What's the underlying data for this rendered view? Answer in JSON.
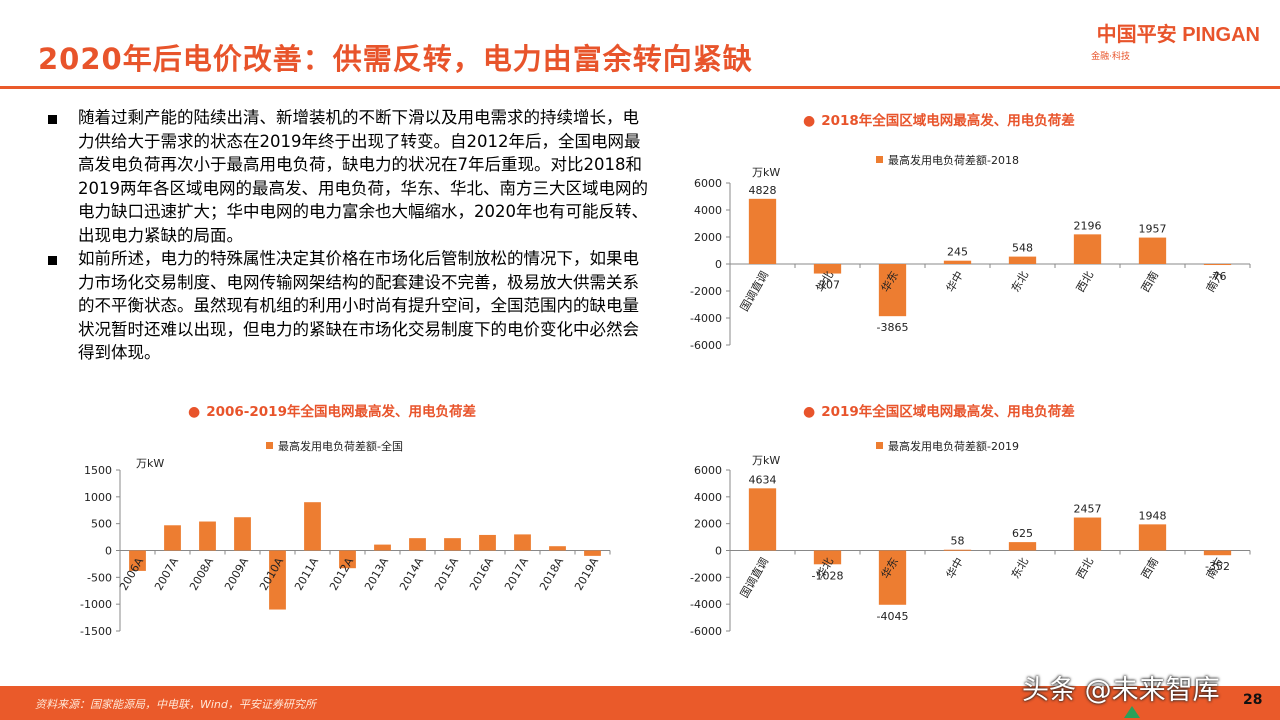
{
  "header": {
    "title": "2020年后电价改善：供需反转，电力由富余转向紧缺",
    "logo_main": "中国平安 PINGAN",
    "logo_sub": "金融·科技"
  },
  "body": {
    "bullets": [
      "随着过剩产能的陆续出清、新增装机的不断下滑以及用电需求的持续增长，电力供给大于需求的状态在2019年终于出现了转变。自2012年后，全国电网最高发电负荷再次小于最高用电负荷，缺电力的状况在7年后重现。对比2018和2019两年各区域电网的最高发、用电负荷，华东、华北、南方三大区域电网的电力缺口迅速扩大；华中电网的电力富余也大幅缩水，2020年也有可能反转、出现电力紧缺的局面。",
      "如前所述，电力的特殊属性决定其价格在市场化后管制放松的情况下，如果电力市场化交易制度、电网传输网架结构的配套建设不完善，极易放大供需关系的不平衡状态。虽然现有机组的利用小时尚有提升空间，全国范围内的缺电量状况暂时还难以出现，但电力的紧缺在市场化交易制度下的电价变化中必然会得到体现。"
    ]
  },
  "footer": {
    "source": "资料来源：国家能源局，中电联，Wind，平安证券研究所",
    "watermark": "头条 @未来智库",
    "page": "28"
  },
  "colors": {
    "accent": "#e8542b",
    "bar": "#ed7d31",
    "footer": "#ea5a2a"
  },
  "chart_data": [
    {
      "id": "2018",
      "type": "bar",
      "title": "2018年全国区域电网最高发、用电负荷差",
      "legend": "最高发用电负荷差额-2018",
      "unit": "万kW",
      "categories": [
        "国调直调",
        "华北",
        "华东",
        "华中",
        "东北",
        "西北",
        "西南",
        "南方"
      ],
      "values": [
        4828,
        -707,
        -3865,
        245,
        548,
        2196,
        1957,
        -76
      ],
      "value_labels": [
        "4828",
        "-707",
        "-3865",
        "245",
        "548",
        "2196",
        "1957",
        "-76"
      ],
      "ylim": [
        -6000,
        6000
      ],
      "yticks": [
        "6000",
        "4000",
        "2000",
        "0",
        "-2000",
        "-4000",
        "-6000"
      ],
      "ytick_values": [
        6000,
        4000,
        2000,
        0,
        -2000,
        -4000,
        -6000
      ]
    },
    {
      "id": "2019",
      "type": "bar",
      "title": "2019年全国区域电网最高发、用电负荷差",
      "legend": "最高发用电负荷差额-2019",
      "unit": "万kW",
      "categories": [
        "国调直调",
        "华北",
        "华东",
        "华中",
        "东北",
        "西北",
        "西南",
        "南方"
      ],
      "values": [
        4634,
        -1028,
        -4045,
        58,
        625,
        2457,
        1948,
        -352
      ],
      "value_labels": [
        "4634",
        "-1028",
        "-4045",
        "58",
        "625",
        "2457",
        "1948",
        "-352"
      ],
      "ylim": [
        -6000,
        6000
      ],
      "yticks": [
        "6000",
        "4000",
        "2000",
        "0",
        "-2000",
        "-4000",
        "-6000"
      ],
      "ytick_values": [
        6000,
        4000,
        2000,
        0,
        -2000,
        -4000,
        -6000
      ]
    },
    {
      "id": "national",
      "type": "bar",
      "title": "2006-2019年全国电网最高发、用电负荷差",
      "legend": "最高发用电负荷差额-全国",
      "unit": "万kW",
      "categories": [
        "2006A",
        "2007A",
        "2008A",
        "2009A",
        "2010A",
        "2011A",
        "2012A",
        "2013A",
        "2014A",
        "2015A",
        "2016A",
        "2017A",
        "2018A",
        "2019A"
      ],
      "values": [
        -380,
        470,
        540,
        620,
        -1100,
        900,
        -330,
        110,
        230,
        230,
        290,
        300,
        80,
        -100
      ],
      "ylim": [
        -1500,
        1500
      ],
      "yticks": [
        "1500",
        "1000",
        "500",
        "0",
        "-500",
        "-1000",
        "-1500"
      ],
      "ytick_values": [
        1500,
        1000,
        500,
        0,
        -500,
        -1000,
        -1500
      ]
    }
  ]
}
